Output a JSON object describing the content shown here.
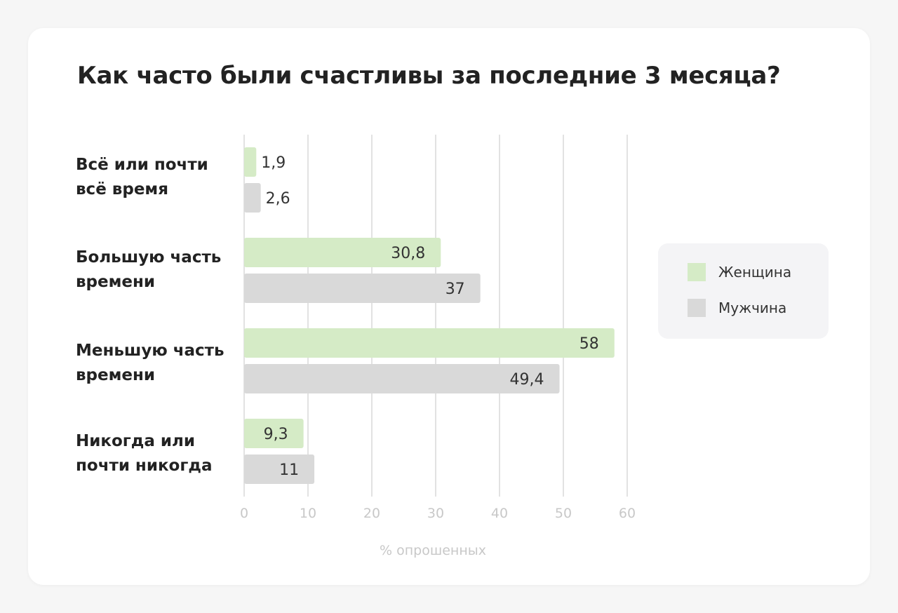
{
  "chart_data": {
    "type": "bar",
    "orientation": "horizontal",
    "title": "Как часто были счастливы за последние 3 месяца?",
    "xlabel": "% опрошенных",
    "ylabel": "",
    "xlim": [
      0,
      60
    ],
    "ticks": [
      0,
      10,
      20,
      30,
      40,
      50,
      60
    ],
    "tick_labels": [
      "0",
      "10",
      "20",
      "30",
      "40",
      "50",
      "60"
    ],
    "grid": "vertical",
    "legend_position": "right",
    "categories": [
      "Всё или почти всё время",
      "Большую часть времени",
      "Меньшую часть времени",
      "Никогда или почти никогда"
    ],
    "category_lines": [
      [
        "Всё или почти",
        "всё время"
      ],
      [
        "Большую часть",
        "времени"
      ],
      [
        "Меньшую часть",
        "времени"
      ],
      [
        "Никогда или",
        "почти никогда"
      ]
    ],
    "series": [
      {
        "name": "Женщина",
        "color": "#d5ebc6",
        "values": [
          1.9,
          30.8,
          58,
          9.3
        ],
        "labels": [
          "1,9",
          "30,8",
          "58",
          "9,3"
        ]
      },
      {
        "name": "Мужчина",
        "color": "#d9d9d9",
        "values": [
          2.6,
          37,
          49.4,
          11
        ],
        "labels": [
          "2,6",
          "37",
          "49,4",
          "11"
        ]
      }
    ]
  },
  "colors": {
    "card_background": "#ffffff",
    "page_background": "#f6f6f6",
    "legend_background": "#f4f4f6",
    "gridline": "#d6d6d6",
    "tick_text": "#c8c8c8",
    "value_text": "#333333"
  }
}
